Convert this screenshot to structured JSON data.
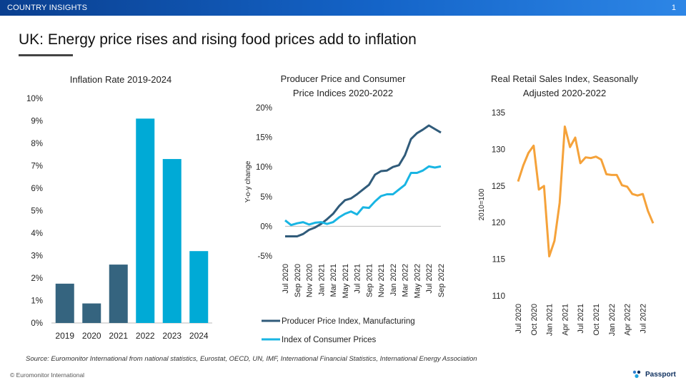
{
  "header": {
    "section": "COUNTRY INSIGHTS",
    "page_number": "1"
  },
  "title": "UK: Energy price rises and rising food prices add to inflation",
  "colors": {
    "bar_dark": "#35647f",
    "bar_bright": "#00aad6",
    "ppi": "#305b7a",
    "cpi": "#19b5e3",
    "rsi": "#f5a23a"
  },
  "chart_data": [
    {
      "type": "bar",
      "title": "Inflation Rate 2019-2024",
      "categories": [
        "2019",
        "2020",
        "2021",
        "2022",
        "2023",
        "2024"
      ],
      "values": [
        1.75,
        0.87,
        2.6,
        9.1,
        7.3,
        3.2
      ],
      "bar_colors": [
        "#35647f",
        "#35647f",
        "#35647f",
        "#00aad6",
        "#00aad6",
        "#00aad6"
      ],
      "ylim": [
        0,
        10
      ],
      "yticks": [
        "0%",
        "1%",
        "2%",
        "3%",
        "4%",
        "5%",
        "6%",
        "7%",
        "8%",
        "9%",
        "10%"
      ],
      "xlabel": "",
      "ylabel": ""
    },
    {
      "type": "line",
      "title_lines": [
        "Producer  Price and Consumer",
        "Price Indices 2020-2022"
      ],
      "ylabel": "Y-o-y change",
      "ylim": [
        -5,
        20
      ],
      "yticks": [
        "-5%",
        "0%",
        "5%",
        "10%",
        "15%",
        "20%"
      ],
      "xticks": [
        "Jul 2020",
        "Sep 2020",
        "Nov 2020",
        "Jan 2021",
        "Mar 2021",
        "May 2021",
        "Jul 2021",
        "Sep 2021",
        "Nov 2021",
        "Jan 2022",
        "Mar 2022",
        "May 2022",
        "Jul 2022",
        "Sep 2022"
      ],
      "series": [
        {
          "name": "Producer Price Index, Manufacturing",
          "values": [
            -1.7,
            -1.7,
            -1.7,
            -1.3,
            -0.6,
            -0.2,
            0.4,
            1.2,
            2.1,
            3.4,
            4.4,
            4.7,
            5.4,
            6.2,
            7.0,
            8.7,
            9.3,
            9.4,
            10.0,
            10.3,
            12.0,
            14.7,
            15.7,
            16.3,
            17.0,
            16.4,
            15.8
          ]
        },
        {
          "name": "Index of Consumer Prices",
          "values": [
            1.0,
            0.2,
            0.5,
            0.7,
            0.3,
            0.6,
            0.7,
            0.4,
            0.7,
            1.5,
            2.1,
            2.5,
            2.0,
            3.2,
            3.1,
            4.2,
            5.1,
            5.4,
            5.4,
            6.2,
            7.0,
            9.0,
            9.0,
            9.4,
            10.1,
            9.9,
            10.1
          ]
        }
      ]
    },
    {
      "type": "line",
      "title_lines": [
        "Real Retail Sales Index, Seasonally",
        "Adjusted 2020-2022"
      ],
      "ylabel": "2010=100",
      "ylim": [
        110,
        135
      ],
      "yticks": [
        "110",
        "115",
        "120",
        "125",
        "130",
        "135"
      ],
      "xticks": [
        "Jul 2020",
        "Oct 2020",
        "Jan 2021",
        "Apr 2021",
        "Jul 2021",
        "Oct 2021",
        "Jan 2022",
        "Apr 2022",
        "Jul 2022"
      ],
      "series": [
        {
          "name": "Real Retail Sales Index",
          "values": [
            125.6,
            127.8,
            129.5,
            130.5,
            124.5,
            125.0,
            115.4,
            117.5,
            122.7,
            133.1,
            130.3,
            131.6,
            128.1,
            128.9,
            128.8,
            129.0,
            128.6,
            126.6,
            126.5,
            126.5,
            125.1,
            124.9,
            123.9,
            123.7,
            123.9,
            121.6,
            119.9
          ]
        }
      ]
    }
  ],
  "legend": {
    "ppi_label": "Producer Price Index, Manufacturing",
    "cpi_label": "Index of Consumer Prices"
  },
  "footer": {
    "source": "Source: Euromonitor International from national statistics, Eurostat, OECD, UN, IMF, International Financial Statistics, International Energy Association",
    "copyright": "© Euromonitor International",
    "brand": "Passport"
  }
}
